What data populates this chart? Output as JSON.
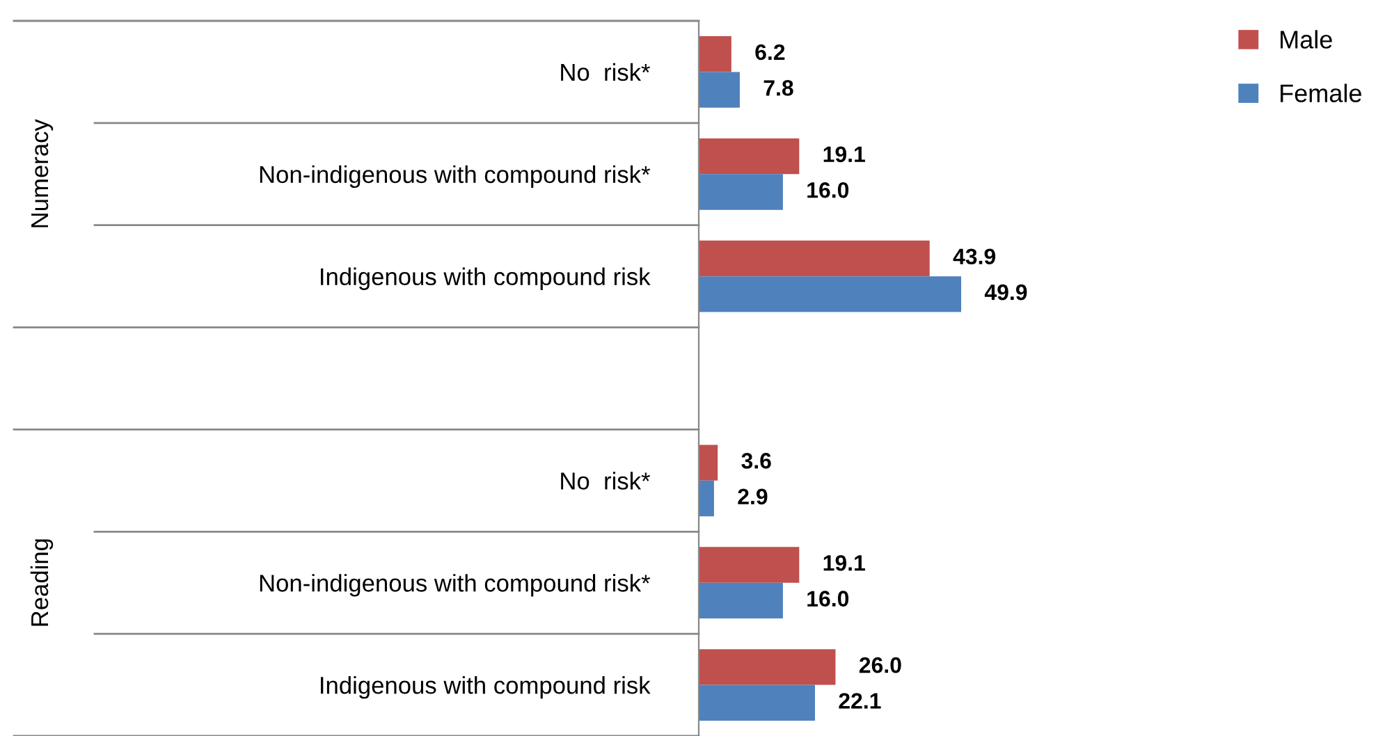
{
  "chart_data": {
    "type": "bar",
    "orientation": "horizontal",
    "categories": [
      "No  risk*",
      "Non-indigenous with compound risk*",
      "Indigenous with compound risk",
      null,
      "No  risk*",
      "Non-indigenous with compound risk*",
      "Indigenous with compound risk"
    ],
    "series": [
      {
        "name": "Male",
        "color": "#c0504d",
        "values": [
          6.2,
          19.1,
          43.9,
          null,
          3.6,
          19.1,
          26.0
        ],
        "value_labels": [
          "6.2",
          "19.1",
          "43.9",
          null,
          "3.6",
          "19.1",
          "26.0"
        ]
      },
      {
        "name": "Female",
        "color": "#4f81bd",
        "values": [
          7.8,
          16.0,
          49.9,
          null,
          2.9,
          16.0,
          22.1
        ],
        "value_labels": [
          "7.8",
          "16.0",
          "49.9",
          null,
          "2.9",
          "16.0",
          "22.1"
        ]
      }
    ],
    "legend": "top right",
    "annotations": [
      "Numeracy",
      "Reading"
    ]
  }
}
